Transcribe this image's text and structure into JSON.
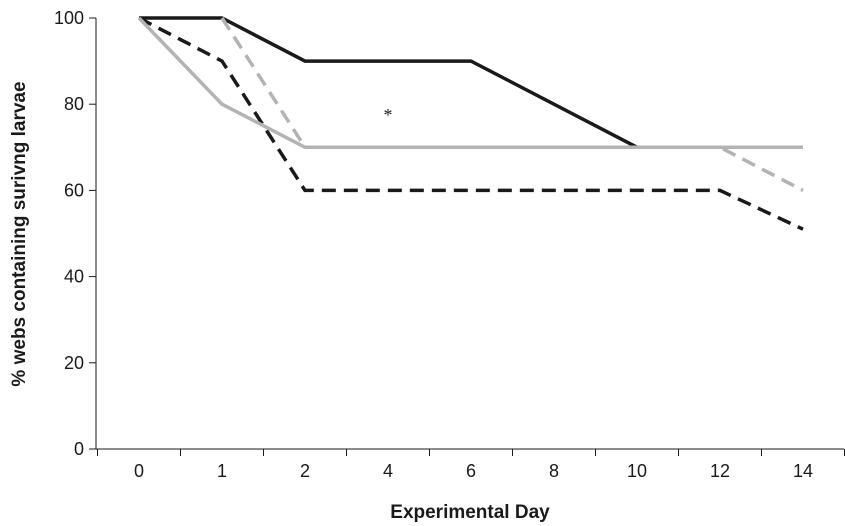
{
  "chart_data": {
    "type": "line",
    "title": "",
    "xlabel": "Experimental Day",
    "ylabel": "% webs containing surivng larvae",
    "xlim": [
      -1,
      15
    ],
    "ylim": [
      0,
      100
    ],
    "x": [
      0,
      1,
      2,
      4,
      6,
      8,
      10,
      12,
      14
    ],
    "x_ticks": [
      "0",
      "1",
      "2",
      "4",
      "6",
      "8",
      "10",
      "12",
      "14"
    ],
    "y_ticks": [
      "0",
      "20",
      "40",
      "60",
      "80",
      "100"
    ],
    "y_tick_values": [
      0,
      20,
      40,
      60,
      80,
      100
    ],
    "grid": false,
    "legend": "none",
    "annotations": [
      {
        "text": "*",
        "x": 4,
        "y": 78
      }
    ],
    "series": [
      {
        "x": [
          0,
          1,
          2,
          6,
          10,
          14
        ],
        "y": [
          100,
          100,
          90,
          90,
          70,
          70
        ],
        "color": "#1a1a1a",
        "dash": "solid"
      },
      {
        "x": [
          0,
          1,
          2,
          12,
          14
        ],
        "y": [
          100,
          90,
          60,
          60,
          51
        ],
        "color": "#1a1a1a",
        "dash": "dashed"
      },
      {
        "x": [
          0,
          1,
          2,
          14
        ],
        "y": [
          100,
          80,
          70,
          70
        ],
        "color": "#b3b3b3",
        "dash": "solid"
      },
      {
        "x": [
          1,
          2,
          12,
          14
        ],
        "y": [
          100,
          70,
          70,
          60
        ],
        "color": "#b3b3b3",
        "dash": "dashed"
      }
    ]
  }
}
